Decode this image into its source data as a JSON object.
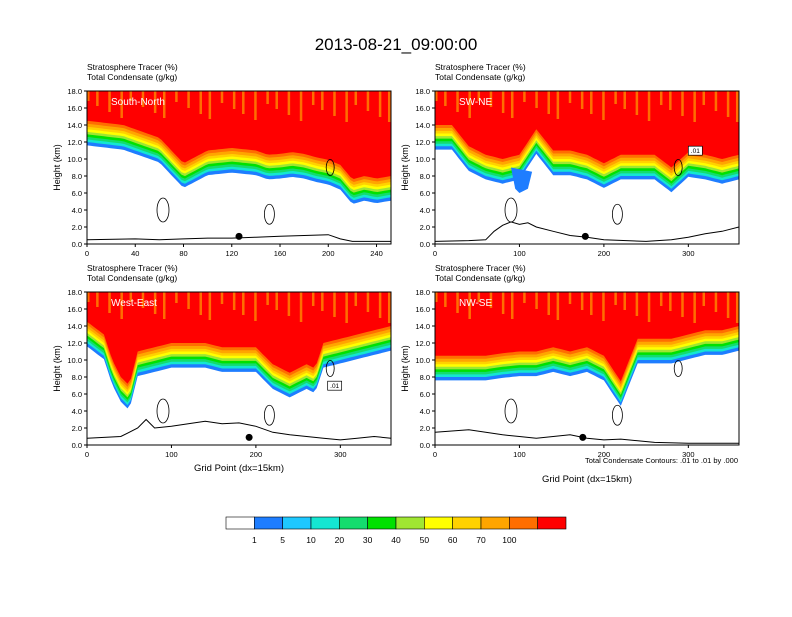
{
  "page": {
    "title": "2013-08-21_09:00:00"
  },
  "colors": {
    "levels": [
      "#ffffff",
      "#1e7dff",
      "#1ec8ff",
      "#14e6d2",
      "#14dc6e",
      "#00e100",
      "#a0e632",
      "#ffff00",
      "#ffd200",
      "#ffa500",
      "#ff6e00",
      "#ff0000"
    ],
    "terrain": "#000000",
    "contour": "#000000"
  },
  "colorbar": {
    "labels": [
      "1",
      "5",
      "10",
      "20",
      "30",
      "40",
      "50",
      "60",
      "70",
      "100"
    ]
  },
  "footer_note": "Total Condensate Contours: .01 to .01 by .000",
  "chart_data": [
    {
      "type": "heatmap",
      "panel_label": "South-North",
      "title_line1": "Stratosphere Tracer   (%)",
      "title_line2": "Total Condensate   (g/kg)",
      "ylabel": "Height (km)",
      "xlabel": "",
      "xlim": [
        0,
        252
      ],
      "ylim": [
        0,
        18
      ],
      "xticks": [
        "0",
        "40",
        "80",
        "120",
        "160",
        "200",
        "240"
      ],
      "xtick_values": [
        0,
        40,
        80,
        120,
        160,
        200,
        240
      ],
      "yticks": [
        "0.0",
        "2.0",
        "4.0",
        "6.0",
        "8.0",
        "10.0",
        "12.0",
        "14.0",
        "16.0",
        "18.0"
      ],
      "contour_label": "",
      "marker_x": 126,
      "base_profile": {
        "x": [
          0,
          30,
          60,
          80,
          100,
          120,
          140,
          150,
          160,
          170,
          180,
          190,
          200,
          210,
          220,
          230,
          240,
          252
        ],
        "y": [
          14.5,
          14.0,
          12.5,
          9.5,
          11.0,
          11.3,
          11.0,
          10.5,
          10.6,
          10.8,
          10.6,
          10.2,
          9.9,
          9.3,
          7.6,
          8.0,
          7.7,
          8.0
        ]
      },
      "blue_dip": {
        "x": [],
        "y": []
      },
      "terrain": {
        "x": [
          0,
          40,
          60,
          80,
          100,
          120,
          140,
          160,
          180,
          200,
          210,
          220,
          240,
          252
        ],
        "y": [
          0.5,
          0.6,
          0.5,
          0.6,
          0.7,
          0.7,
          0.8,
          0.9,
          1.0,
          1.1,
          0.6,
          0.3,
          0.3,
          0.3
        ]
      }
    },
    {
      "type": "heatmap",
      "panel_label": "SW-NE",
      "title_line1": "Stratosphere Tracer   (%)",
      "title_line2": "Total Condensate   (g/kg)",
      "ylabel": "Height (km)",
      "xlabel": "",
      "xlim": [
        0,
        360
      ],
      "ylim": [
        0,
        18
      ],
      "xticks": [
        "0",
        "100",
        "200",
        "300"
      ],
      "xtick_values": [
        0,
        100,
        200,
        300
      ],
      "yticks": [
        "0.0",
        "2.0",
        "4.0",
        "6.0",
        "8.0",
        "10.0",
        "12.0",
        "14.0",
        "16.0",
        "18.0"
      ],
      "contour_label": ".01",
      "marker_x": 178,
      "base_profile": {
        "x": [
          0,
          20,
          40,
          60,
          80,
          100,
          120,
          140,
          160,
          180,
          200,
          220,
          240,
          260,
          280,
          300,
          320,
          340,
          360
        ],
        "y": [
          14.0,
          14.0,
          11.5,
          10.5,
          10.0,
          10.5,
          13.5,
          11.0,
          11.0,
          10.5,
          9.5,
          10.5,
          10.5,
          10.5,
          9.0,
          10.8,
          10.5,
          10.0,
          10.5
        ]
      },
      "blue_dip": {
        "x": [
          90,
          95,
          100,
          110,
          115
        ],
        "y": [
          9.0,
          6.5,
          6.0,
          6.5,
          8.5
        ]
      },
      "terrain": {
        "x": [
          0,
          40,
          60,
          70,
          80,
          90,
          100,
          110,
          120,
          140,
          160,
          180,
          200,
          250,
          280,
          300,
          320,
          340,
          360
        ],
        "y": [
          0.3,
          0.4,
          0.5,
          1.5,
          2.2,
          2.6,
          2.3,
          2.5,
          2.0,
          1.5,
          1.0,
          0.8,
          0.5,
          0.3,
          0.5,
          0.8,
          1.2,
          1.5,
          2.0
        ]
      }
    },
    {
      "type": "heatmap",
      "panel_label": "West-East",
      "title_line1": "Stratosphere Tracer   (%)",
      "title_line2": "Total Condensate   (g/kg)",
      "ylabel": "Height (km)",
      "xlabel": "Grid Point (dx=15km)",
      "xlim": [
        0,
        360
      ],
      "ylim": [
        0,
        18
      ],
      "xticks": [
        "0",
        "100",
        "200",
        "300"
      ],
      "xtick_values": [
        0,
        100,
        200,
        300
      ],
      "yticks": [
        "0.0",
        "2.0",
        "4.0",
        "6.0",
        "8.0",
        "10.0",
        "12.0",
        "14.0",
        "16.0",
        "18.0"
      ],
      "contour_label": ".01",
      "marker_x": 192,
      "base_profile": {
        "x": [
          0,
          20,
          30,
          40,
          50,
          60,
          80,
          100,
          120,
          140,
          160,
          180,
          200,
          220,
          240,
          260,
          270,
          280,
          300,
          320,
          340,
          360
        ],
        "y": [
          14.5,
          13.0,
          10.0,
          8.0,
          7.0,
          11.0,
          11.5,
          12.0,
          12.0,
          12.0,
          11.5,
          11.5,
          11.5,
          9.5,
          8.5,
          9.5,
          9.0,
          12.0,
          12.5,
          13.0,
          13.5,
          14.0
        ]
      },
      "blue_dip": {},
      "terrain": {
        "x": [
          0,
          40,
          60,
          70,
          80,
          100,
          120,
          140,
          160,
          180,
          200,
          220,
          240,
          260,
          280,
          300,
          320,
          340,
          360
        ],
        "y": [
          0.8,
          1.0,
          2.0,
          3.0,
          2.0,
          2.2,
          2.5,
          2.8,
          2.5,
          2.6,
          2.2,
          1.5,
          1.2,
          1.0,
          0.8,
          0.6,
          0.8,
          1.0,
          0.8
        ]
      }
    },
    {
      "type": "heatmap",
      "panel_label": "NW-SE",
      "title_line1": "Stratosphere Tracer   (%)",
      "title_line2": "Total Condensate   (g/kg)",
      "ylabel": "",
      "xlabel": "Grid Point (dx=15km)",
      "xlim": [
        0,
        360
      ],
      "ylim": [
        0,
        18
      ],
      "xticks": [
        "0",
        "100",
        "200",
        "300"
      ],
      "xtick_values": [
        0,
        100,
        200,
        300
      ],
      "yticks": [
        "0.0",
        "2.0",
        "4.0",
        "6.0",
        "8.0",
        "10.0",
        "12.0",
        "14.0",
        "16.0",
        "18.0"
      ],
      "contour_label": "",
      "marker_x": 175,
      "base_profile": {
        "x": [
          0,
          20,
          40,
          60,
          80,
          100,
          120,
          140,
          160,
          180,
          200,
          220,
          240,
          260,
          280,
          300,
          320,
          340,
          360
        ],
        "y": [
          10.5,
          10.5,
          10.5,
          10.5,
          10.8,
          11.0,
          11.0,
          11.5,
          11.0,
          11.5,
          10.5,
          7.5,
          12.5,
          12.5,
          12.5,
          13.0,
          13.5,
          13.5,
          14.0
        ]
      },
      "blue_dip": {
        "x": [],
        "y": []
      },
      "terrain": {
        "x": [
          0,
          40,
          80,
          100,
          120,
          140,
          160,
          180,
          200,
          220,
          240,
          260,
          300,
          330,
          360
        ],
        "y": [
          1.5,
          1.8,
          1.2,
          1.0,
          0.8,
          1.0,
          1.2,
          0.8,
          0.6,
          0.7,
          0.5,
          0.3,
          0.2,
          0.2,
          0.2
        ]
      }
    }
  ]
}
